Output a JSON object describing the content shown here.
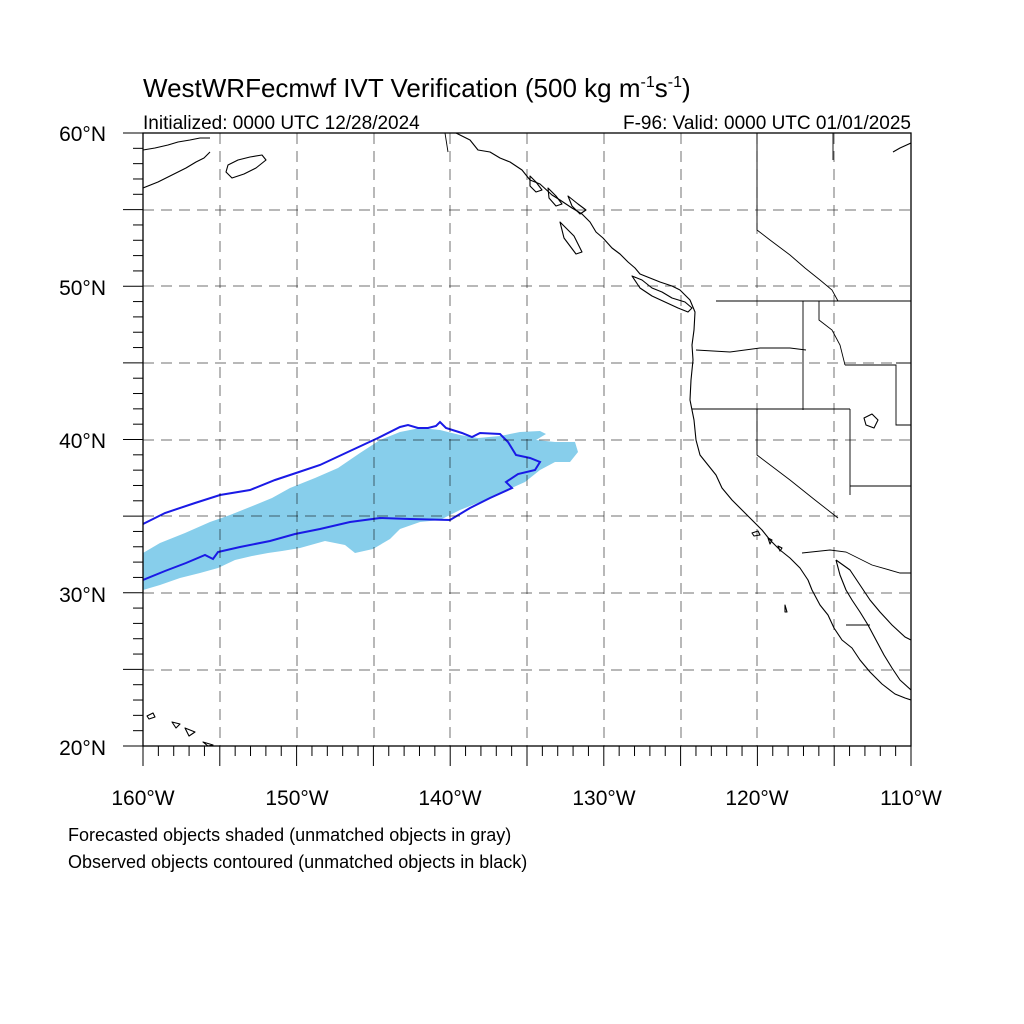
{
  "title": {
    "main": "WestWRFecmwf IVT Verification (500 kg m",
    "exp1": "-1",
    "mid": "s",
    "exp2": "-1",
    "close": ")"
  },
  "subtitle": {
    "initialized": "Initialized: 0000 UTC 12/28/2024",
    "valid": "F-96: Valid: 0000 UTC 01/01/2025"
  },
  "axes": {
    "lat_labels": [
      "60°N",
      "50°N",
      "40°N",
      "30°N",
      "20°N"
    ],
    "lon_labels": [
      "160°W",
      "150°W",
      "140°W",
      "130°W",
      "120°W",
      "110°W"
    ],
    "lat_range": [
      20,
      60
    ],
    "lon_range": [
      -160,
      -110
    ],
    "grid": "dashed, every 5 degrees"
  },
  "colors": {
    "forecast_fill": "#87ceeb",
    "observed_contour": "#1a1ae6",
    "coastline": "#000000"
  },
  "objects": {
    "forecast_shaded": "sky blue atmospheric river object from ~160°W 31°N to ~132°W 39°N",
    "observed_contour": "blue outline from ~160°W 31–35°N to ~134°W 39°N"
  },
  "captions": {
    "line1": "Forecasted objects shaded (unmatched objects in gray)",
    "line2": "Observed objects contoured (unmatched objects in black)"
  }
}
